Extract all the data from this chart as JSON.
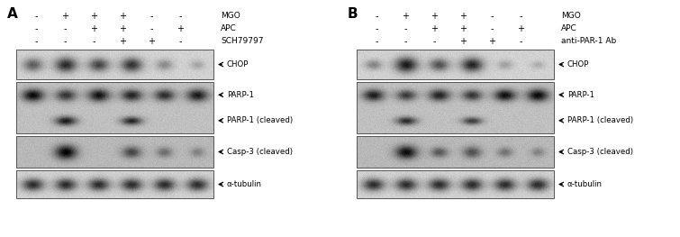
{
  "panel_A_label": "A",
  "panel_B_label": "B",
  "row_labels_A": [
    "MGO",
    "APC",
    "SCH79797"
  ],
  "row_labels_B": [
    "MGO",
    "APC",
    "anti-PAR-1 Ab"
  ],
  "signs_A": [
    [
      "-",
      "+",
      "+",
      "+",
      "-",
      "-"
    ],
    [
      "-",
      "-",
      "+",
      "+",
      "-",
      "+"
    ],
    [
      "-",
      "-",
      "-",
      "+",
      "+",
      "-"
    ]
  ],
  "signs_B": [
    [
      "-",
      "+",
      "+",
      "+",
      "-",
      "-"
    ],
    [
      "-",
      "-",
      "+",
      "+",
      "-",
      "+"
    ],
    [
      "-",
      "-",
      "-",
      "+",
      "+",
      "-"
    ]
  ],
  "band_labels_A": [
    "CHOP",
    "PARP-1",
    "PARP-1 (cleaved)",
    "Casp-3 (cleaved)",
    "a-tubulin"
  ],
  "band_labels_B": [
    "CHOP",
    "PARP-1",
    "PARP-1 (cleaved)",
    "Casp-3 (cleaved)",
    "a-tubulin"
  ],
  "bg_color": "#ffffff"
}
